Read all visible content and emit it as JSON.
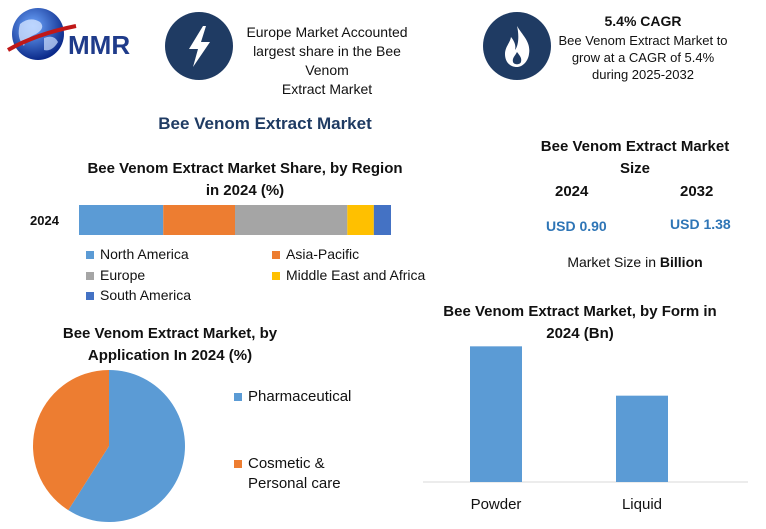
{
  "logo": {
    "text": "MMR"
  },
  "banner": {
    "left": {
      "icon": "lightning-icon",
      "text_lines": [
        "Europe Market Accounted",
        "largest share in the Bee Venom",
        "Extract Market"
      ]
    },
    "right": {
      "icon": "flame-icon",
      "title": "5.4% CAGR",
      "text_lines": [
        "Bee Venom Extract Market to",
        "grow at a CAGR of 5.4%",
        "during 2025-2032"
      ]
    }
  },
  "main_title": "Bee Venom Extract Market",
  "market_size": {
    "title_lines": [
      "Bee Venom Extract Market",
      "Size"
    ],
    "year1": "2024",
    "year2": "2032",
    "value1": "USD 0.90",
    "value2": "USD 1.38",
    "unit_prefix": "Market Size in ",
    "unit_bold": "Billion"
  },
  "colors": {
    "blue": "#5b9bd5",
    "orange": "#ed7d31",
    "gray": "#a5a5a5",
    "gold": "#ffc000",
    "darkblue": "#4472c4",
    "navy": "#1f3b63",
    "value_blue": "#2e75b6"
  },
  "chart_data": [
    {
      "type": "bar",
      "orientation": "horizontal-stacked",
      "title_lines": [
        "Bee Venom Extract Market Share, by Region",
        "in 2024 (%)"
      ],
      "categories": [
        "2024"
      ],
      "series": [
        {
          "name": "North America",
          "values": [
            27
          ],
          "color": "#5b9bd5"
        },
        {
          "name": "Asia-Pacific",
          "values": [
            23
          ],
          "color": "#ed7d31"
        },
        {
          "name": "Europe",
          "values": [
            36
          ],
          "color": "#a5a5a5"
        },
        {
          "name": "Middle East and Africa",
          "values": [
            8.5
          ],
          "color": "#ffc000"
        },
        {
          "name": "South America",
          "values": [
            5.5
          ],
          "color": "#4472c4"
        }
      ]
    },
    {
      "type": "pie",
      "title_lines": [
        "Bee Venom Extract Market, by",
        "Application In 2024 (%)"
      ],
      "slices": [
        {
          "name": "Pharmaceutical",
          "value": 59,
          "color": "#5b9bd5"
        },
        {
          "name": "Cosmetic & Personal care",
          "value": 41,
          "color": "#ed7d31",
          "label_lines": [
            "Cosmetic &",
            "Personal care"
          ]
        }
      ]
    },
    {
      "type": "bar",
      "title_lines": [
        "Bee Venom Extract Market, by Form in",
        "2024 (Bn)"
      ],
      "categories": [
        "Powder",
        "Liquid"
      ],
      "values": [
        0.55,
        0.35
      ],
      "ylim": [
        0,
        0.6
      ],
      "color": "#5b9bd5"
    }
  ]
}
